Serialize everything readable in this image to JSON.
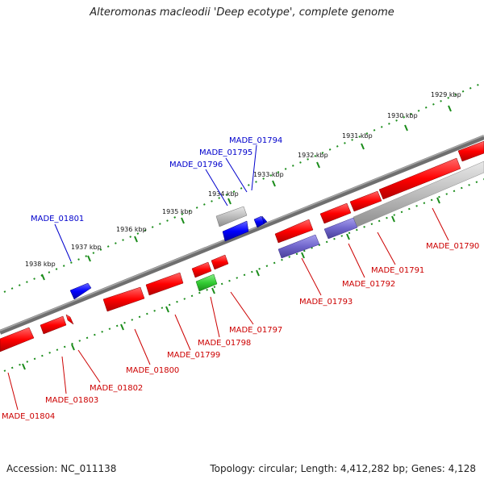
{
  "title": "Alteromonas macleodii 'Deep ecotype', complete genome",
  "accession": "Accession: NC_011138",
  "summary": "Topology: circular; Length: 4,412,282 bp; Genes: 4,128",
  "colors": {
    "forward_gene": "#ff1a1a",
    "reverse_gene": "#1a1aff",
    "rna_gene": "#bdbdbd",
    "green_feature": "#33cc33",
    "purple_feature": "#7a70cc",
    "backbone": "#808080",
    "ticks": "#1a8c1a",
    "forward_label": "#cc0000",
    "reverse_label": "#0000cc"
  },
  "scale_labels": [
    "1929 kbp",
    "1930 kbp",
    "1931 kbp",
    "1932 kbp",
    "1933 kbp",
    "1934 kbp",
    "1935 kbp",
    "1936 kbp",
    "1937 kbp",
    "1938 kbp"
  ],
  "top_gene_labels": [
    "MADE_01794",
    "MADE_01795",
    "MADE_01796",
    "MADE_01801"
  ],
  "bottom_gene_labels": [
    "MADE_01790",
    "MADE_01791",
    "MADE_01792",
    "MADE_01793",
    "MADE_01797",
    "MADE_01798",
    "MADE_01799",
    "MADE_01800",
    "MADE_01802",
    "MADE_01803",
    "MADE_01804"
  ]
}
